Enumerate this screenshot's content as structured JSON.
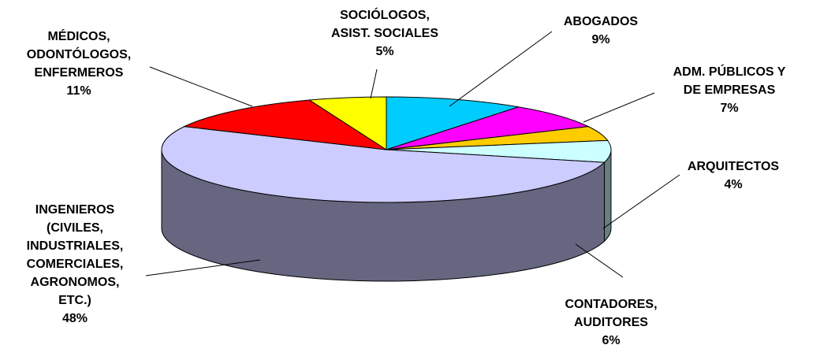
{
  "chart_data": {
    "type": "pie3d",
    "categories": [
      "ABOGADOS",
      "ADM. PÚBLICOS Y DE EMPRESAS",
      "ARQUITECTOS",
      "CONTADORES, AUDITORES",
      "INGENIEROS (CIVILES, INDUSTRIALES, COMERCIALES, AGRONOMOS, ETC.)",
      "MÉDICOS, ODONTÓLOGOS, ENFERMEROS",
      "SOCIÓLOGOS, ASIST. SOCIALES"
    ],
    "values": [
      9,
      7,
      4,
      6,
      48,
      11,
      5
    ],
    "value_labels": [
      "9%",
      "7%",
      "4%",
      "6%",
      "48%",
      "11%",
      "5%"
    ],
    "colors": [
      "#00ccff",
      "#ff00ff",
      "#ffcc00",
      "#ccffff",
      "#ccccff",
      "#ff0000",
      "#ffff00"
    ]
  }
}
